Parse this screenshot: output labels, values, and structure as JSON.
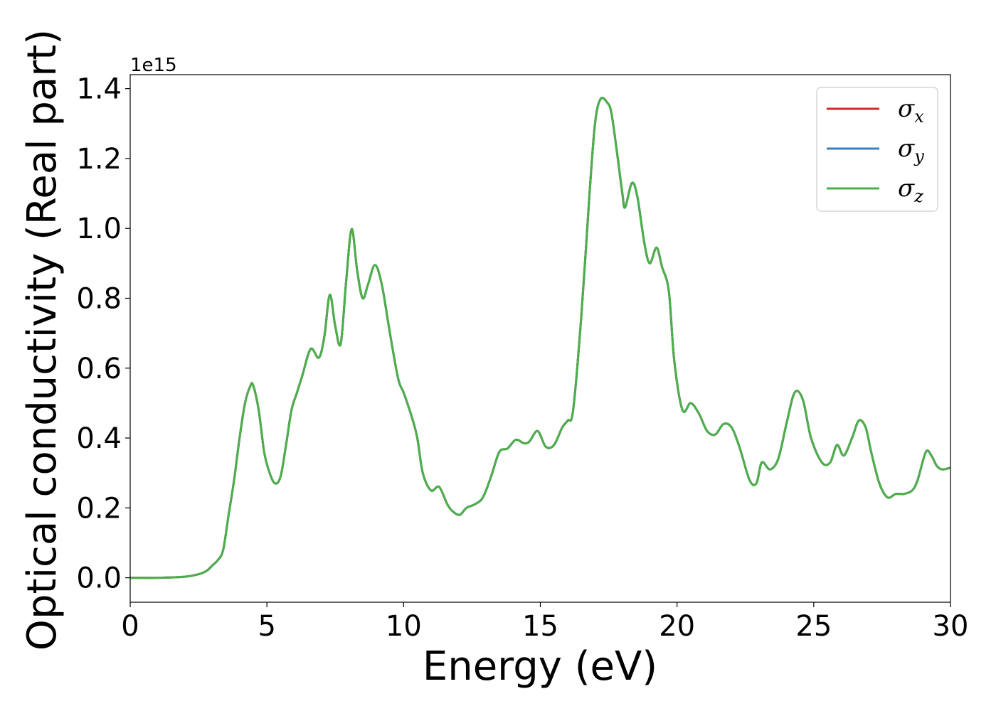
{
  "chart_data": {
    "type": "line",
    "title": "",
    "xlabel": "Energy (eV)",
    "ylabel": "Optical conductivity (Real part)",
    "offset_label": "1e15",
    "xlim": [
      0,
      30
    ],
    "ylim": [
      -0.07,
      1.44
    ],
    "x_ticks": [
      0,
      5,
      10,
      15,
      20,
      25,
      30
    ],
    "x_tick_labels": [
      "0",
      "5",
      "10",
      "15",
      "20",
      "25",
      "30"
    ],
    "y_ticks": [
      0.0,
      0.2,
      0.4,
      0.6,
      0.8,
      1.0,
      1.2,
      1.4
    ],
    "y_tick_labels": [
      "0.0",
      "0.2",
      "0.4",
      "0.6",
      "0.8",
      "1.0",
      "1.2",
      "1.4"
    ],
    "grid": false,
    "legend_position": "top-right",
    "x": [
      0.0,
      1.0,
      2.0,
      2.5,
      2.8,
      3.0,
      3.2,
      3.4,
      3.6,
      3.8,
      4.0,
      4.2,
      4.4,
      4.5,
      4.7,
      4.9,
      5.1,
      5.3,
      5.5,
      5.7,
      5.9,
      6.1,
      6.3,
      6.6,
      6.9,
      7.1,
      7.3,
      7.5,
      7.7,
      7.9,
      8.1,
      8.3,
      8.5,
      8.7,
      8.95,
      9.2,
      9.5,
      9.8,
      10.0,
      10.3,
      10.5,
      10.7,
      11.0,
      11.3,
      11.6,
      11.8,
      12.05,
      12.3,
      12.6,
      12.9,
      13.2,
      13.5,
      13.8,
      14.1,
      14.4,
      14.6,
      14.9,
      15.2,
      15.5,
      15.8,
      16.0,
      16.2,
      16.5,
      16.8,
      17.0,
      17.2,
      17.45,
      17.6,
      17.8,
      18.0,
      18.1,
      18.35,
      18.55,
      18.8,
      19.0,
      19.25,
      19.45,
      19.7,
      19.9,
      20.2,
      20.5,
      20.8,
      21.1,
      21.4,
      21.7,
      22.0,
      22.3,
      22.65,
      22.9,
      23.1,
      23.4,
      23.7,
      24.0,
      24.3,
      24.6,
      24.9,
      25.3,
      25.6,
      25.85,
      26.1,
      26.4,
      26.65,
      26.9,
      27.1,
      27.4,
      27.7,
      28.0,
      28.3,
      28.6,
      28.8,
      29.1,
      29.3,
      29.5,
      29.7,
      30.0
    ],
    "series": [
      {
        "name": "σx",
        "color": "#d62728",
        "values": [
          0.0,
          0.0,
          0.003,
          0.01,
          0.02,
          0.035,
          0.05,
          0.08,
          0.18,
          0.28,
          0.4,
          0.5,
          0.55,
          0.55,
          0.48,
          0.36,
          0.3,
          0.27,
          0.29,
          0.38,
          0.48,
          0.53,
          0.58,
          0.655,
          0.63,
          0.69,
          0.81,
          0.72,
          0.67,
          0.85,
          0.998,
          0.88,
          0.8,
          0.84,
          0.895,
          0.84,
          0.7,
          0.57,
          0.53,
          0.46,
          0.4,
          0.3,
          0.25,
          0.26,
          0.21,
          0.19,
          0.18,
          0.2,
          0.21,
          0.23,
          0.29,
          0.36,
          0.37,
          0.395,
          0.385,
          0.39,
          0.42,
          0.375,
          0.38,
          0.43,
          0.45,
          0.48,
          0.75,
          1.1,
          1.3,
          1.37,
          1.36,
          1.33,
          1.22,
          1.1,
          1.06,
          1.13,
          1.09,
          0.96,
          0.9,
          0.945,
          0.89,
          0.82,
          0.62,
          0.48,
          0.5,
          0.47,
          0.42,
          0.41,
          0.44,
          0.43,
          0.37,
          0.28,
          0.27,
          0.33,
          0.31,
          0.34,
          0.44,
          0.53,
          0.51,
          0.4,
          0.33,
          0.33,
          0.38,
          0.35,
          0.4,
          0.45,
          0.43,
          0.36,
          0.27,
          0.23,
          0.24,
          0.24,
          0.25,
          0.28,
          0.36,
          0.35,
          0.32,
          0.31,
          0.315
        ]
      },
      {
        "name": "σy",
        "color": "#3a7ebf",
        "values": [
          0.0,
          0.0,
          0.003,
          0.01,
          0.02,
          0.035,
          0.05,
          0.08,
          0.18,
          0.28,
          0.4,
          0.5,
          0.55,
          0.55,
          0.48,
          0.36,
          0.3,
          0.27,
          0.29,
          0.38,
          0.48,
          0.53,
          0.58,
          0.655,
          0.63,
          0.69,
          0.81,
          0.72,
          0.67,
          0.85,
          0.998,
          0.88,
          0.8,
          0.84,
          0.895,
          0.84,
          0.7,
          0.57,
          0.53,
          0.46,
          0.4,
          0.3,
          0.25,
          0.26,
          0.21,
          0.19,
          0.18,
          0.2,
          0.21,
          0.23,
          0.29,
          0.36,
          0.37,
          0.395,
          0.385,
          0.39,
          0.42,
          0.375,
          0.38,
          0.43,
          0.45,
          0.48,
          0.75,
          1.1,
          1.3,
          1.37,
          1.36,
          1.33,
          1.22,
          1.1,
          1.06,
          1.13,
          1.09,
          0.96,
          0.9,
          0.945,
          0.89,
          0.82,
          0.62,
          0.48,
          0.5,
          0.47,
          0.42,
          0.41,
          0.44,
          0.43,
          0.37,
          0.28,
          0.27,
          0.33,
          0.31,
          0.34,
          0.44,
          0.53,
          0.51,
          0.4,
          0.33,
          0.33,
          0.38,
          0.35,
          0.4,
          0.45,
          0.43,
          0.36,
          0.27,
          0.23,
          0.24,
          0.24,
          0.25,
          0.28,
          0.36,
          0.35,
          0.32,
          0.31,
          0.315
        ]
      },
      {
        "name": "σz",
        "color": "#4daf4a",
        "values": [
          0.0,
          0.0,
          0.003,
          0.01,
          0.02,
          0.035,
          0.05,
          0.08,
          0.18,
          0.28,
          0.4,
          0.5,
          0.55,
          0.55,
          0.48,
          0.36,
          0.3,
          0.27,
          0.29,
          0.38,
          0.48,
          0.53,
          0.58,
          0.655,
          0.63,
          0.69,
          0.81,
          0.72,
          0.67,
          0.85,
          0.998,
          0.88,
          0.8,
          0.84,
          0.895,
          0.84,
          0.7,
          0.57,
          0.53,
          0.46,
          0.4,
          0.3,
          0.25,
          0.26,
          0.21,
          0.19,
          0.18,
          0.2,
          0.21,
          0.23,
          0.29,
          0.36,
          0.37,
          0.395,
          0.385,
          0.39,
          0.42,
          0.375,
          0.38,
          0.43,
          0.45,
          0.48,
          0.75,
          1.1,
          1.3,
          1.37,
          1.36,
          1.33,
          1.22,
          1.1,
          1.06,
          1.13,
          1.09,
          0.96,
          0.9,
          0.945,
          0.89,
          0.82,
          0.62,
          0.48,
          0.5,
          0.47,
          0.42,
          0.41,
          0.44,
          0.43,
          0.37,
          0.28,
          0.27,
          0.33,
          0.31,
          0.34,
          0.44,
          0.53,
          0.51,
          0.4,
          0.33,
          0.33,
          0.38,
          0.35,
          0.4,
          0.45,
          0.43,
          0.36,
          0.27,
          0.23,
          0.24,
          0.24,
          0.25,
          0.28,
          0.36,
          0.35,
          0.32,
          0.31,
          0.315
        ]
      }
    ]
  }
}
